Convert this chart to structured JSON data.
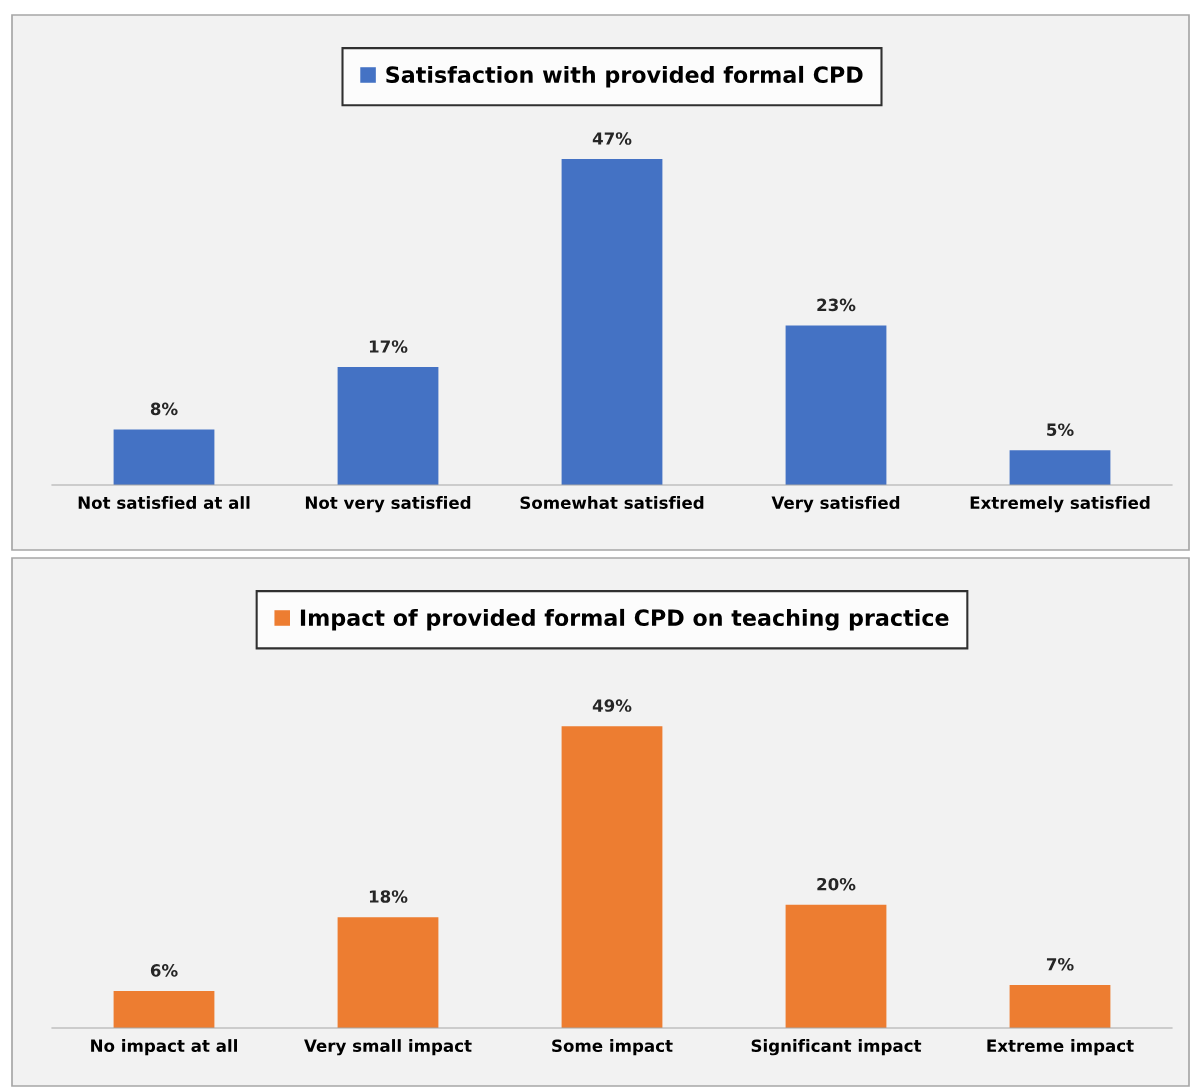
{
  "chart_data": [
    {
      "type": "bar",
      "categories": [
        "Not satisfied at all",
        "Not very satisfied",
        "Somewhat satisfied",
        "Very satisfied",
        "Extremely satisfied"
      ],
      "series": [
        {
          "name": "Satisfaction with provided formal CPD",
          "color": "#4472c4",
          "values": [
            8,
            17,
            47,
            23,
            5
          ],
          "value_labels": [
            "8%",
            "17%",
            "47%",
            "23%",
            "5%"
          ]
        }
      ],
      "legend": "top",
      "grid": false
    },
    {
      "type": "bar",
      "categories": [
        "No impact at all",
        "Very small impact",
        "Some impact",
        "Significant impact",
        "Extreme impact"
      ],
      "series": [
        {
          "name": "Impact of provided formal CPD on teaching practice",
          "color": "#ed7d31",
          "values": [
            6,
            18,
            49,
            20,
            7
          ],
          "value_labels": [
            "6%",
            "18%",
            "49%",
            "20%",
            "7%"
          ]
        }
      ],
      "legend": "top",
      "grid": false
    }
  ]
}
